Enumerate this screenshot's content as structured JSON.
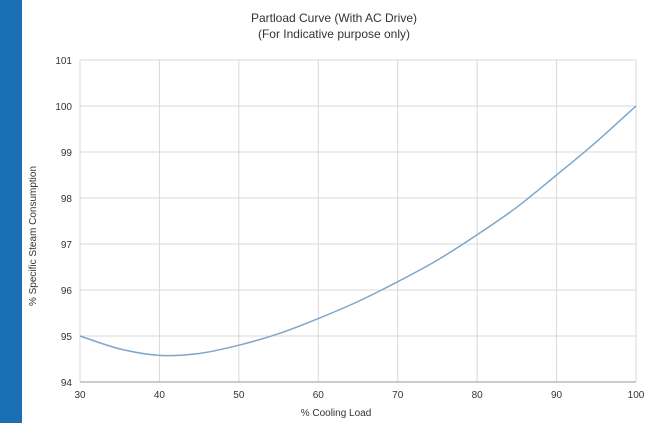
{
  "colors": {
    "accent_bar": "#1a6fb4",
    "grid": "#d9d9d9",
    "series_line": "#7ea6c9",
    "axis": "#999999"
  },
  "chart_data": {
    "type": "line",
    "title": "Partload Curve (With AC Drive)",
    "subtitle": "(For Indicative purpose only)",
    "xlabel": "% Cooling Load",
    "ylabel": "% Specific Steam Consumption",
    "xlim": [
      30,
      100
    ],
    "ylim": [
      94,
      101
    ],
    "x_ticks": [
      30,
      40,
      50,
      60,
      70,
      80,
      90,
      100
    ],
    "y_ticks": [
      94,
      95,
      96,
      97,
      98,
      99,
      100,
      101
    ],
    "grid": true,
    "legend": "none",
    "series": [
      {
        "x": [
          30,
          35,
          40,
          45,
          50,
          55,
          60,
          65,
          70,
          75,
          80,
          85,
          90,
          95,
          100
        ],
        "y": [
          95.0,
          94.72,
          94.58,
          94.62,
          94.8,
          95.05,
          95.38,
          95.75,
          96.18,
          96.65,
          97.2,
          97.8,
          98.5,
          99.22,
          100.0
        ]
      }
    ]
  }
}
